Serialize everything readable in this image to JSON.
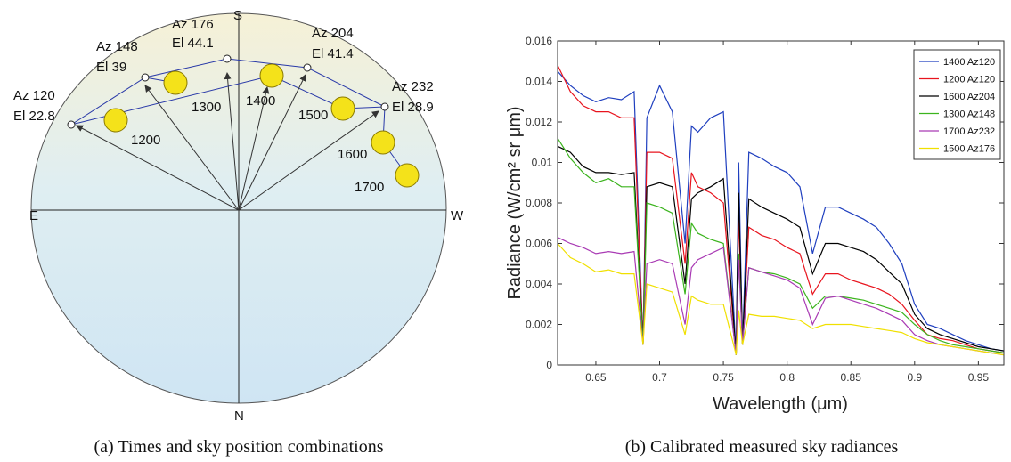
{
  "sky_diagram": {
    "directions": {
      "south": "S",
      "east": "E",
      "west": "W",
      "north": "N"
    },
    "positions": [
      {
        "azimuth": "Az 120",
        "elevation": "El 22.8"
      },
      {
        "azimuth": "Az 148",
        "elevation": "El 39"
      },
      {
        "azimuth": "Az 176",
        "elevation": "El 44.1"
      },
      {
        "azimuth": "Az 204",
        "elevation": "El 41.4"
      },
      {
        "azimuth": "Az 232",
        "elevation": "El 28.9"
      }
    ],
    "sun_times": [
      "1200",
      "1300",
      "1400",
      "1500",
      "1600",
      "1700"
    ],
    "caption": "(a) Times and sky position combinations"
  },
  "chart_data": {
    "type": "line",
    "caption": "(b) Calibrated measured sky radiances",
    "xlabel": "Wavelength (μm)",
    "ylabel": "Radiance (W/cm² sr μm)",
    "xlim": [
      0.62,
      0.97
    ],
    "ylim": [
      0,
      0.016
    ],
    "xticks": [
      0.65,
      0.7,
      0.75,
      0.8,
      0.85,
      0.9,
      0.95
    ],
    "yticks": [
      0,
      0.002,
      0.004,
      0.006,
      0.008,
      0.01,
      0.012,
      0.014,
      0.016
    ],
    "legend": "upper right",
    "x": [
      0.62,
      0.63,
      0.64,
      0.65,
      0.66,
      0.67,
      0.68,
      0.687,
      0.69,
      0.7,
      0.71,
      0.72,
      0.725,
      0.73,
      0.74,
      0.75,
      0.76,
      0.762,
      0.765,
      0.77,
      0.78,
      0.79,
      0.8,
      0.81,
      0.82,
      0.83,
      0.84,
      0.85,
      0.86,
      0.87,
      0.88,
      0.89,
      0.9,
      0.91,
      0.92,
      0.93,
      0.94,
      0.95,
      0.96,
      0.97
    ],
    "series": [
      {
        "name": "1400 Az120",
        "color": "#1f3fbf",
        "values": [
          0.0145,
          0.0138,
          0.0133,
          0.013,
          0.0132,
          0.0131,
          0.0135,
          0.001,
          0.0122,
          0.0138,
          0.0125,
          0.006,
          0.0118,
          0.0115,
          0.0122,
          0.0125,
          0.0005,
          0.01,
          0.001,
          0.0105,
          0.0102,
          0.0098,
          0.0095,
          0.0088,
          0.0055,
          0.0078,
          0.0078,
          0.0075,
          0.0072,
          0.0068,
          0.006,
          0.005,
          0.003,
          0.002,
          0.0018,
          0.0015,
          0.0012,
          0.001,
          0.0008,
          0.0007
        ]
      },
      {
        "name": "1200 Az120",
        "color": "#e8141e",
        "values": [
          0.0148,
          0.0135,
          0.0128,
          0.0125,
          0.0125,
          0.0122,
          0.0122,
          0.001,
          0.0105,
          0.0105,
          0.0102,
          0.005,
          0.0095,
          0.0088,
          0.0085,
          0.008,
          0.0005,
          0.0075,
          0.001,
          0.0068,
          0.0064,
          0.0062,
          0.0058,
          0.0055,
          0.0035,
          0.0045,
          0.0045,
          0.0042,
          0.004,
          0.0038,
          0.0035,
          0.003,
          0.0022,
          0.0015,
          0.0013,
          0.0012,
          0.001,
          0.0008,
          0.0007,
          0.0006
        ]
      },
      {
        "name": "1600 Az204",
        "color": "#000000",
        "values": [
          0.0108,
          0.0105,
          0.0098,
          0.0095,
          0.0095,
          0.0094,
          0.0095,
          0.001,
          0.0088,
          0.009,
          0.0088,
          0.004,
          0.0082,
          0.0085,
          0.0088,
          0.0092,
          0.0005,
          0.0085,
          0.001,
          0.0082,
          0.0078,
          0.0075,
          0.0072,
          0.0068,
          0.0045,
          0.006,
          0.006,
          0.0058,
          0.0056,
          0.0052,
          0.0046,
          0.004,
          0.0025,
          0.0018,
          0.0015,
          0.0013,
          0.0011,
          0.0009,
          0.0008,
          0.0007
        ]
      },
      {
        "name": "1300 Az148",
        "color": "#3cb41e",
        "values": [
          0.0112,
          0.0102,
          0.0095,
          0.009,
          0.0092,
          0.0088,
          0.0088,
          0.001,
          0.008,
          0.0078,
          0.0075,
          0.0035,
          0.007,
          0.0065,
          0.0062,
          0.006,
          0.0005,
          0.0055,
          0.001,
          0.0048,
          0.0046,
          0.0045,
          0.0043,
          0.004,
          0.0028,
          0.0034,
          0.0034,
          0.0033,
          0.0032,
          0.003,
          0.0028,
          0.0026,
          0.002,
          0.0015,
          0.0012,
          0.001,
          0.0009,
          0.0008,
          0.0007,
          0.0006
        ]
      },
      {
        "name": "1700 Az232",
        "color": "#a93ab4",
        "values": [
          0.0063,
          0.006,
          0.0058,
          0.0055,
          0.0056,
          0.0055,
          0.0056,
          0.001,
          0.005,
          0.0052,
          0.005,
          0.002,
          0.0048,
          0.0052,
          0.0055,
          0.0058,
          0.0005,
          0.0052,
          0.001,
          0.0048,
          0.0046,
          0.0044,
          0.0042,
          0.0038,
          0.002,
          0.0033,
          0.0034,
          0.0032,
          0.003,
          0.0028,
          0.0025,
          0.0022,
          0.0015,
          0.0012,
          0.001,
          0.0009,
          0.0008,
          0.0007,
          0.0006,
          0.0005
        ]
      },
      {
        "name": "1500 Az176",
        "color": "#f0e000",
        "values": [
          0.006,
          0.0053,
          0.005,
          0.0046,
          0.0047,
          0.0045,
          0.0045,
          0.001,
          0.004,
          0.0038,
          0.0036,
          0.0015,
          0.0034,
          0.0032,
          0.003,
          0.003,
          0.0005,
          0.0027,
          0.001,
          0.0025,
          0.0024,
          0.0024,
          0.0023,
          0.0022,
          0.0018,
          0.002,
          0.002,
          0.002,
          0.0019,
          0.0018,
          0.0017,
          0.0016,
          0.0013,
          0.0011,
          0.001,
          0.0009,
          0.0008,
          0.0007,
          0.0006,
          0.0005
        ]
      }
    ]
  }
}
